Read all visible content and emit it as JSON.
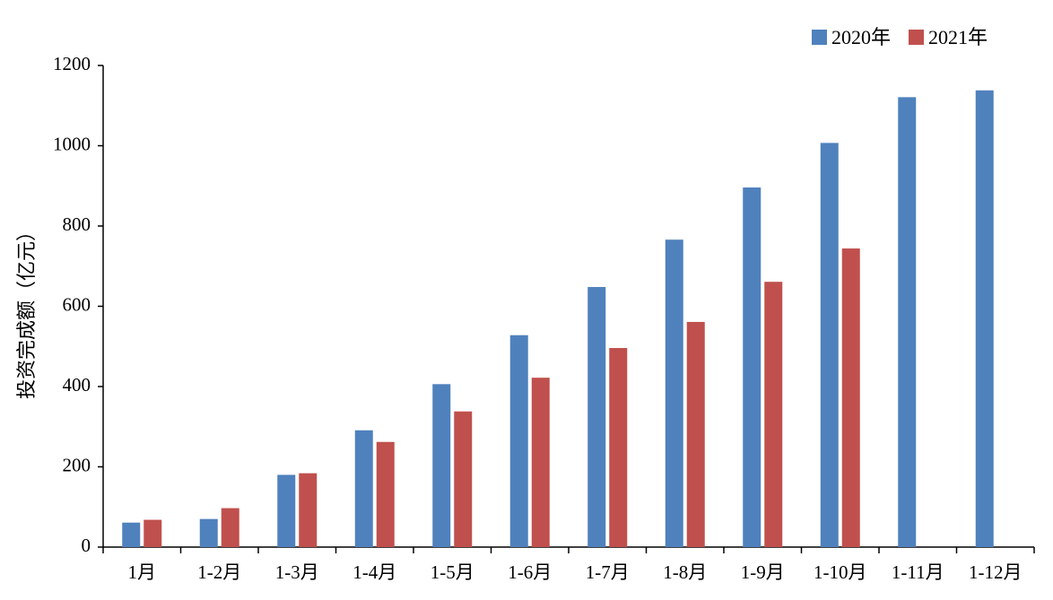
{
  "chart_data": {
    "type": "bar",
    "title": "",
    "xlabel": "",
    "ylabel": "投资完成额（亿元）",
    "ylim": [
      0,
      1200
    ],
    "yticks": [
      0,
      200,
      400,
      600,
      800,
      1000,
      1200
    ],
    "grid": false,
    "legend_position": "top-right",
    "categories": [
      "1月",
      "1-2月",
      "1-3月",
      "1-4月",
      "1-5月",
      "1-6月",
      "1-7月",
      "1-8月",
      "1-9月",
      "1-10月",
      "1-11月",
      "1-12月"
    ],
    "series": [
      {
        "name": "2020年",
        "color": "#4f81bd",
        "values": [
          61,
          70,
          180,
          291,
          406,
          528,
          648,
          766,
          896,
          1007,
          1121,
          1138
        ]
      },
      {
        "name": "2021年",
        "color": "#c0504d",
        "values": [
          68,
          97,
          184,
          262,
          338,
          422,
          496,
          561,
          661,
          744,
          null,
          null
        ]
      }
    ]
  }
}
